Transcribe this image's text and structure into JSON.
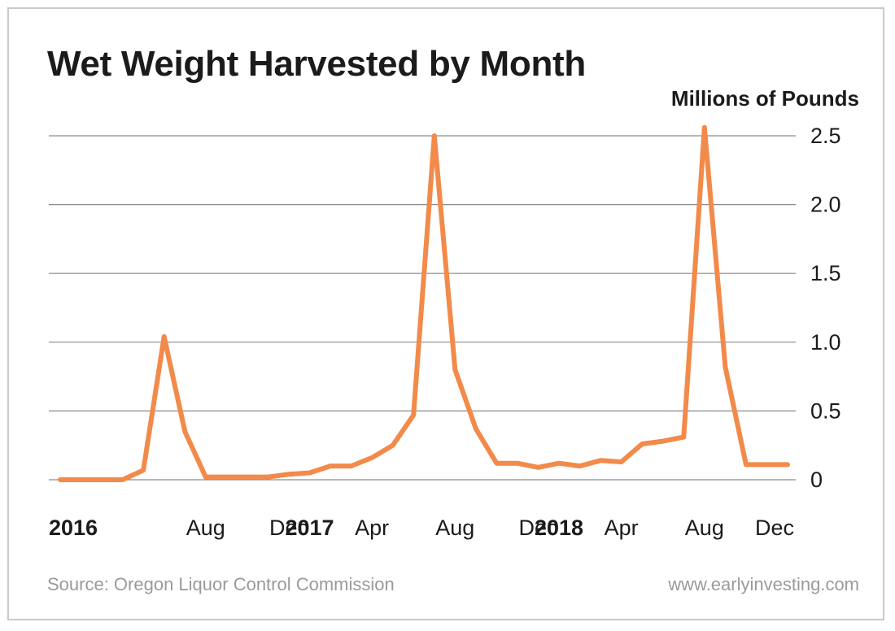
{
  "header": {
    "title": "Wet Weight Harvested by Month",
    "unit_label": "Millions of Pounds"
  },
  "footer": {
    "source": "Source: Oregon Liquor Control Commission",
    "site": "www.earlyinvesting.com"
  },
  "chart_data": {
    "type": "line",
    "title": "Wet Weight Harvested by Month",
    "ylabel": "Millions of Pounds",
    "xlabel": "",
    "ylim": [
      0,
      2.5
    ],
    "yticks": [
      {
        "value": 0,
        "label": "0"
      },
      {
        "value": 0.5,
        "label": "0.5"
      },
      {
        "value": 1.0,
        "label": "1.0"
      },
      {
        "value": 1.5,
        "label": "1.5"
      },
      {
        "value": 2.0,
        "label": "2.0"
      },
      {
        "value": 2.5,
        "label": "2.5"
      }
    ],
    "y_axis_side": "right",
    "grid": true,
    "line_color": "#f28a4a",
    "x": [
      "2016-01",
      "2016-02",
      "2016-03",
      "2016-04",
      "2016-05",
      "2016-06",
      "2016-07",
      "2016-08",
      "2016-09",
      "2016-10",
      "2016-11",
      "2016-12",
      "2017-01",
      "2017-02",
      "2017-03",
      "2017-04",
      "2017-05",
      "2017-06",
      "2017-07",
      "2017-08",
      "2017-09",
      "2017-10",
      "2017-11",
      "2017-12",
      "2018-01",
      "2018-02",
      "2018-03",
      "2018-04",
      "2018-05",
      "2018-06",
      "2018-07",
      "2018-08",
      "2018-09",
      "2018-10",
      "2018-11",
      "2018-12"
    ],
    "xticks": [
      {
        "x": "2016-01",
        "label": "2016",
        "bold": true
      },
      {
        "x": "2016-08",
        "label": "Aug",
        "bold": false
      },
      {
        "x": "2016-12",
        "label": "Dec",
        "bold": false
      },
      {
        "x": "2017-01",
        "label": "2017",
        "bold": true
      },
      {
        "x": "2017-04",
        "label": "Apr",
        "bold": false
      },
      {
        "x": "2017-08",
        "label": "Aug",
        "bold": false
      },
      {
        "x": "2017-12",
        "label": "Dec",
        "bold": false
      },
      {
        "x": "2018-01",
        "label": "2018",
        "bold": true
      },
      {
        "x": "2018-04",
        "label": "Apr",
        "bold": false
      },
      {
        "x": "2018-08",
        "label": "Aug",
        "bold": false
      },
      {
        "x": "2018-12",
        "label": "Dec",
        "bold": false
      }
    ],
    "series": [
      {
        "values": [
          0,
          0,
          0,
          0,
          0.07,
          1.04,
          0.35,
          0.02,
          0.02,
          0.02,
          0.02,
          0.04,
          0.05,
          0.1,
          0.1,
          0.16,
          0.25,
          0.47,
          2.5,
          0.8,
          0.37,
          0.12,
          0.12,
          0.09,
          0.12,
          0.1,
          0.14,
          0.13,
          0.26,
          0.28,
          0.31,
          2.56,
          0.82,
          0.11,
          0.11,
          0.11
        ]
      }
    ]
  }
}
